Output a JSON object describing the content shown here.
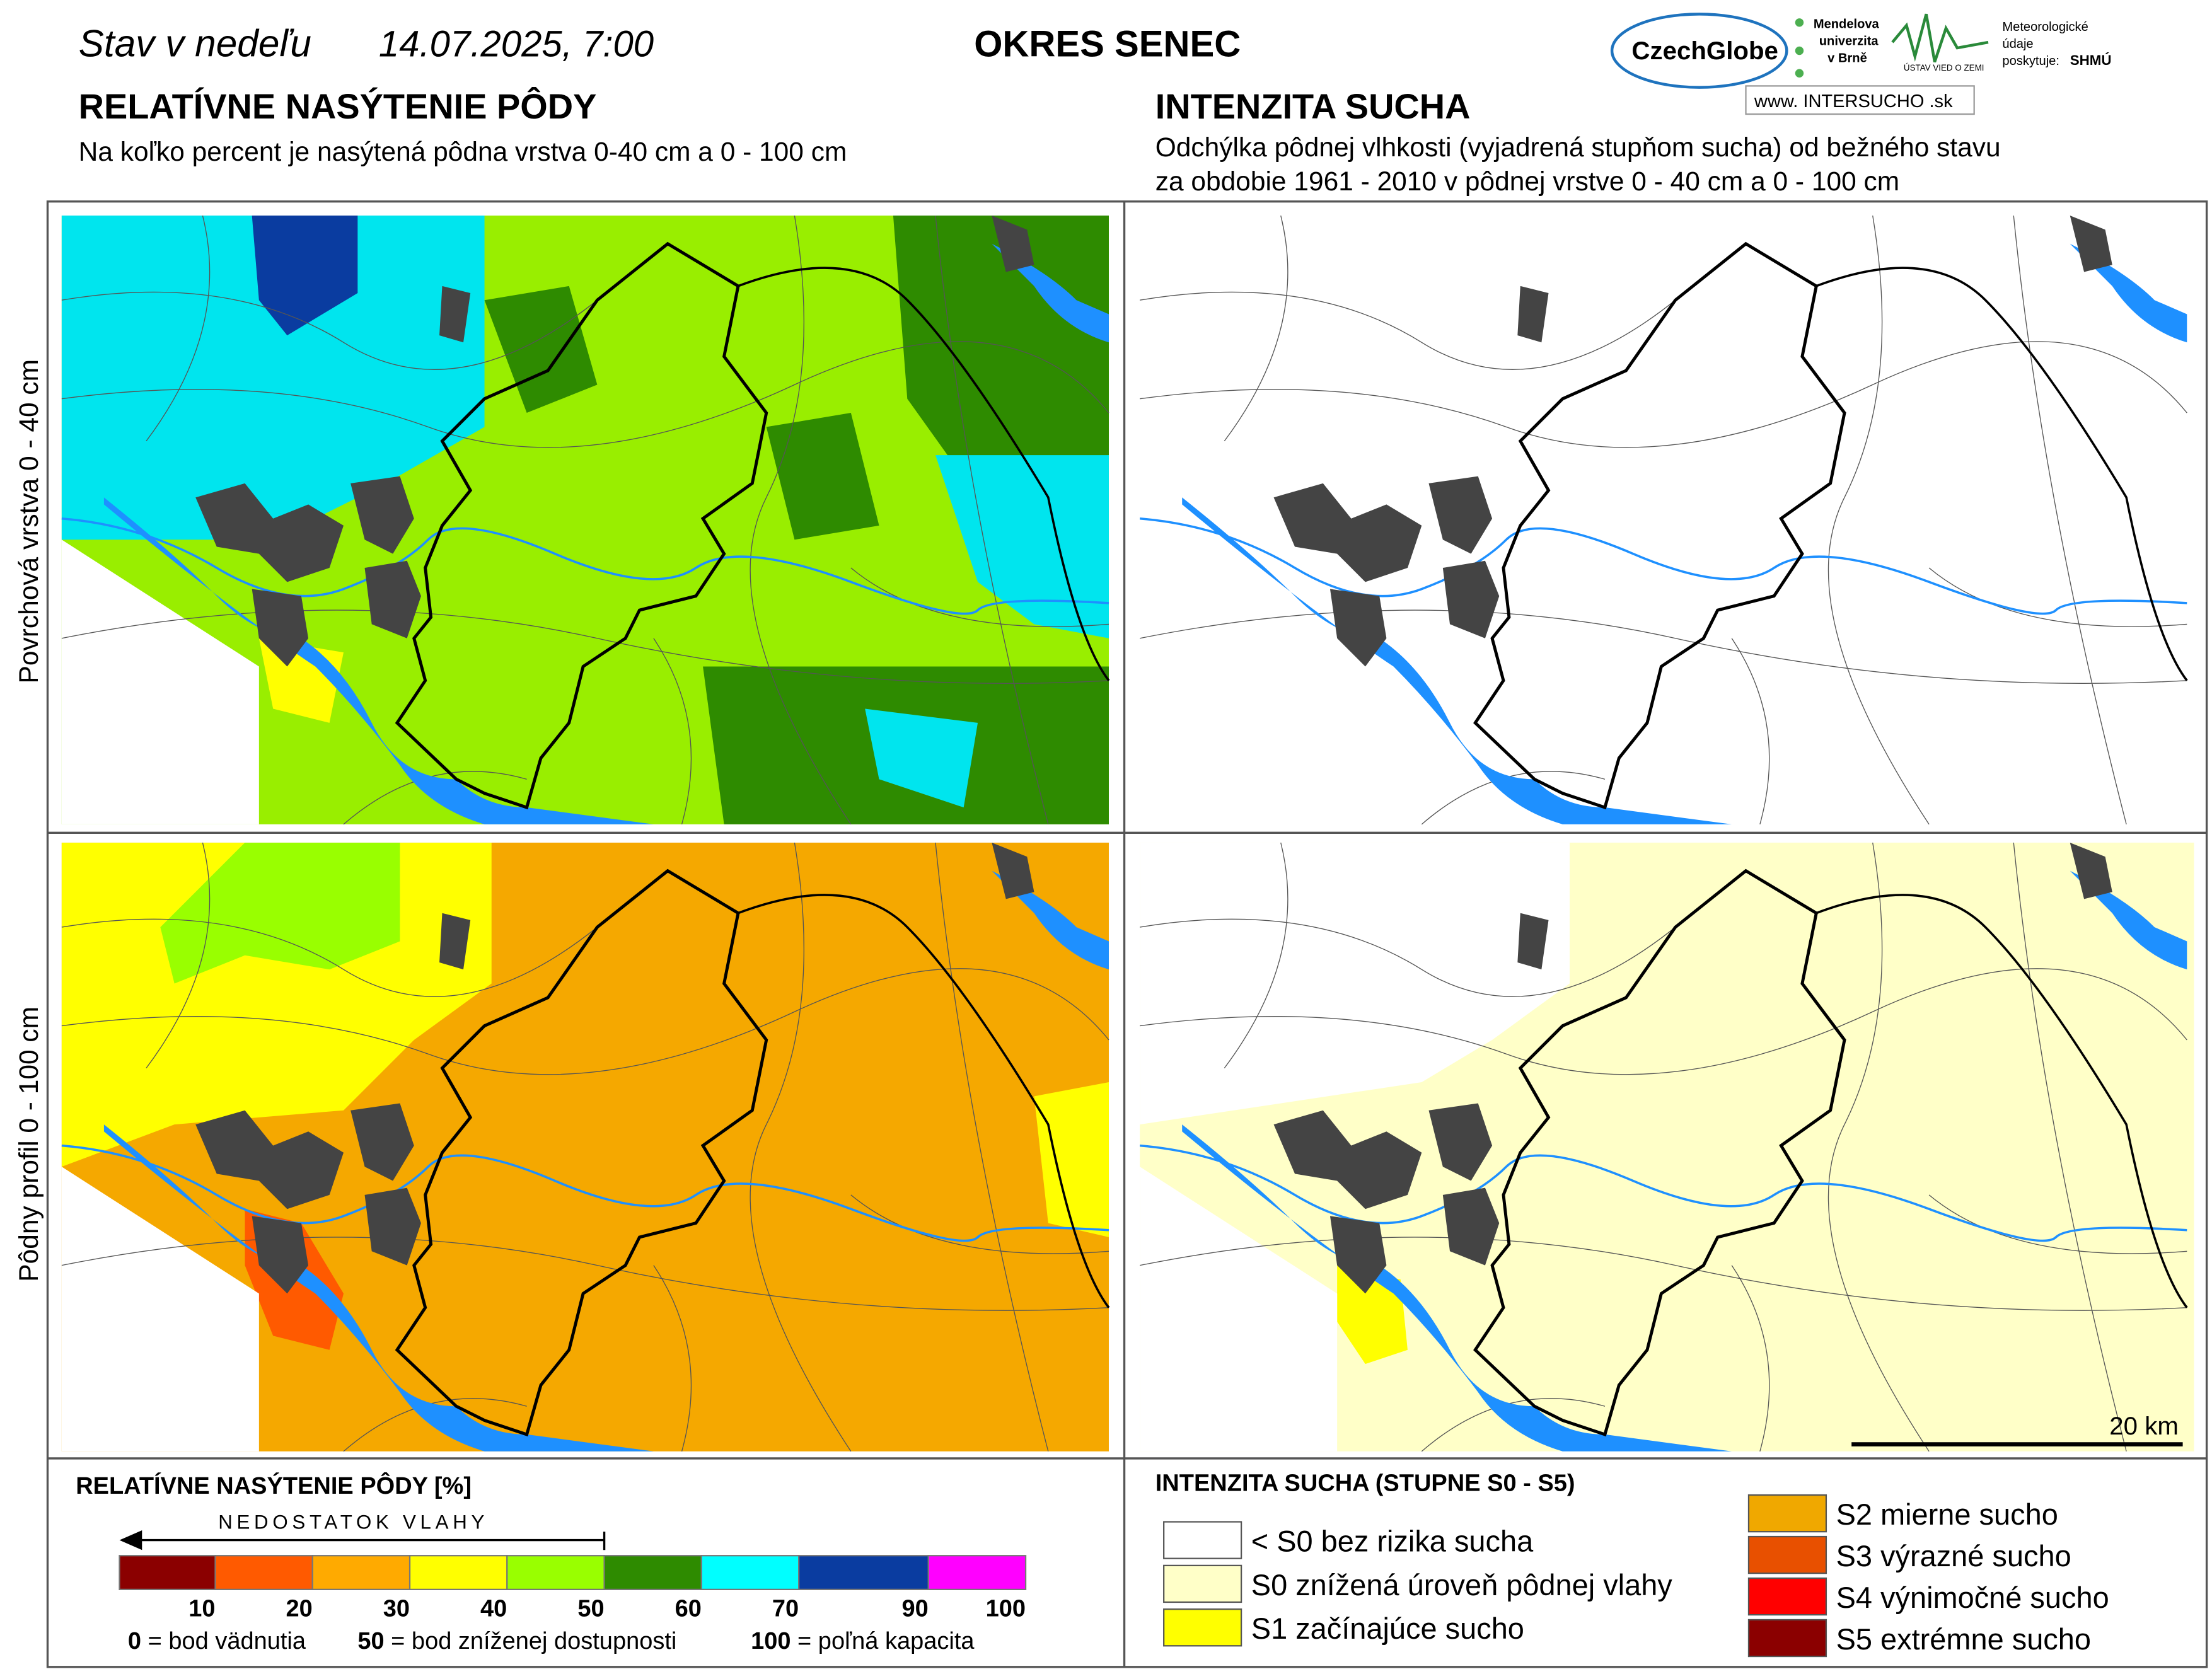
{
  "header": {
    "date_prefix": "Stav v nedeľu",
    "date": "14.07.2025, 7:00",
    "district": "OKRES  SENEC",
    "left_title": "RELATÍVNE NASÝTENIE PÔDY",
    "left_subtitle": "Na koľko percent je nasýtená pôdna vrstva 0-40 cm a 0 - 100 cm",
    "right_title": "INTENZITA SUCHA",
    "right_subtitle": [
      "Odchýlka pôdnej vlhkosti (vyjadrená stupňom sucha) od bežného stavu",
      "za obdobie 1961 - 2010 v pôdnej vrstve 0 - 40 cm a 0 - 100 cm"
    ]
  },
  "logos": {
    "czechglobe": "CzechGlobe",
    "mendelu": [
      "Mendelova",
      "univerzita",
      "v Brně"
    ],
    "ustav": "ÚSTAV VIED O ZEMI",
    "meteo": [
      "Meteorologické",
      "údaje",
      "poskytuje:"
    ],
    "shmu": "SHMÚ",
    "intersucho": "www. INTERSUCHO .sk"
  },
  "row_labels": [
    "Povrchová vrstva 0 - 40 cm",
    "Pôdny profil 0 - 100 cm"
  ],
  "scale_bar": "20 km",
  "legend_left": {
    "title": "RELATÍVNE NASÝTENIE PÔDY [%]",
    "arrow": "NEDOSTATOK VLAHY",
    "classes": [
      {
        "color": "#8b0000",
        "upper": 10
      },
      {
        "color": "#ff5a00",
        "upper": 20
      },
      {
        "color": "#ffaa00",
        "upper": 30
      },
      {
        "color": "#ffff00",
        "upper": 40
      },
      {
        "color": "#99ff00",
        "upper": 50
      },
      {
        "color": "#2e8b00",
        "upper": 60
      },
      {
        "color": "#00ffff",
        "upper": 70
      },
      {
        "color": "#0a3ca0",
        "upper": 90
      },
      {
        "color": "#ff00ff",
        "upper": 100
      }
    ],
    "notes": [
      {
        "key": "0",
        "text": " = bod vädnutia"
      },
      {
        "key": "50",
        "text": " = bod zníženej dostupnosti"
      },
      {
        "key": "100",
        "text": " = poľná kapacita"
      }
    ]
  },
  "legend_right": {
    "title": "INTENZITA SUCHA (STUPNE S0 - S5)",
    "classes": [
      {
        "label": "< S0 bez rizika sucha",
        "color": "#ffffff"
      },
      {
        "label": "S0 znížená úroveň pôdnej vlahy",
        "color": "#ffffc8"
      },
      {
        "label": "S1 začínajúce sucho",
        "color": "#ffff00"
      },
      {
        "label": "S2 mierne sucho",
        "color": "#f0a800"
      },
      {
        "label": "S3 výrazné sucho",
        "color": "#e85000"
      },
      {
        "label": "S4 výnimočné sucho",
        "color": "#ff0000"
      },
      {
        "label": "S5 extrémne sucho",
        "color": "#8b0000"
      }
    ]
  }
}
